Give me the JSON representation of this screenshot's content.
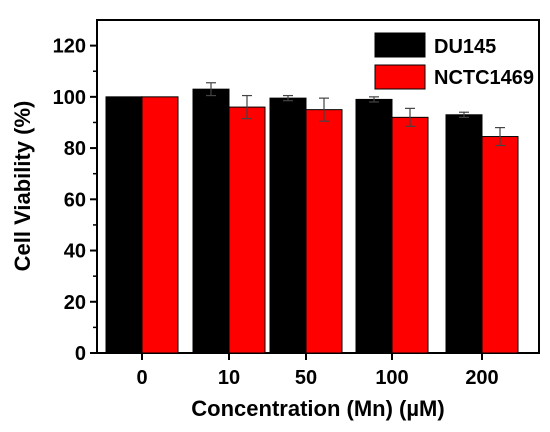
{
  "chart_data": {
    "type": "bar",
    "categories": [
      "0",
      "10",
      "50",
      "100",
      "200"
    ],
    "series": [
      {
        "name": "DU145",
        "color": "#000000",
        "values": [
          100,
          103,
          99.5,
          99,
          93
        ],
        "errors": [
          0,
          2.5,
          1,
          1,
          1
        ]
      },
      {
        "name": "NCTC1469",
        "color": "#ff0000",
        "values": [
          100,
          96,
          95,
          92,
          84.5
        ],
        "errors": [
          0,
          4.5,
          4.5,
          3.5,
          3.5
        ]
      }
    ],
    "xlabel": "Concentration (Mn) (µM)",
    "ylabel": "Cell Viability (%)",
    "ylim": [
      0,
      130
    ],
    "yticks": [
      0,
      20,
      40,
      60,
      80,
      100,
      120
    ],
    "legend_position": "top-right",
    "grid": false
  }
}
